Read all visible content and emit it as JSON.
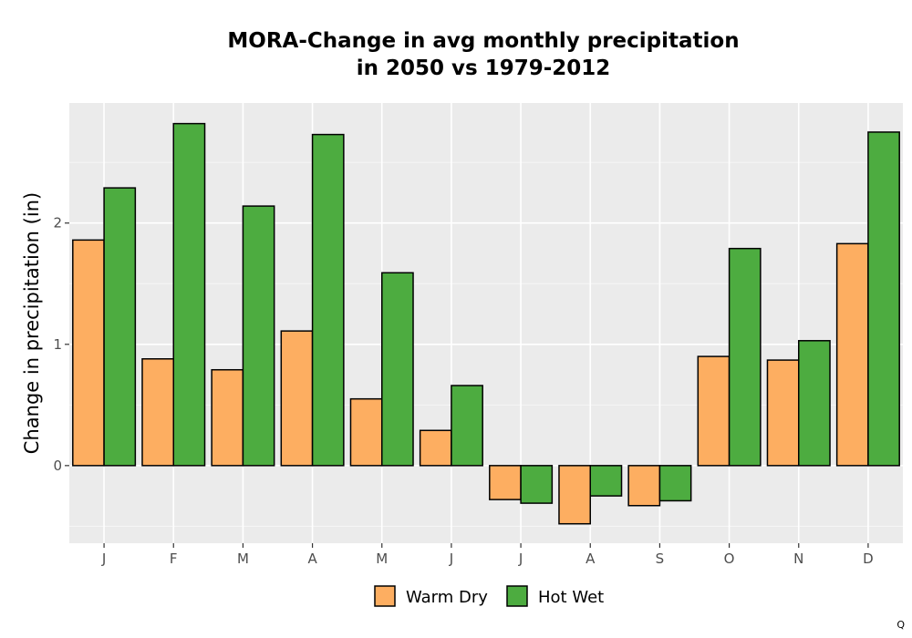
{
  "chart_data": {
    "type": "bar",
    "title_lines": [
      "MORA-Change in avg monthly precipitation",
      "in 2050 vs 1979-2012"
    ],
    "xlabel": "",
    "ylabel": "Change in precipitation (in)",
    "categories": [
      "J",
      "F",
      "M",
      "A",
      "M",
      "J",
      "J",
      "A",
      "S",
      "O",
      "N",
      "D"
    ],
    "series": [
      {
        "name": "Warm Dry",
        "color": "#FDAE61",
        "values": [
          1.86,
          0.88,
          0.79,
          1.11,
          0.55,
          0.29,
          -0.28,
          -0.48,
          -0.33,
          0.9,
          0.87,
          1.83
        ]
      },
      {
        "name": "Hot Wet",
        "color": "#4DAC40",
        "values": [
          2.29,
          2.82,
          2.14,
          2.73,
          1.59,
          0.66,
          -0.31,
          -0.25,
          -0.29,
          1.79,
          1.03,
          2.75
        ]
      }
    ],
    "ylim": [
      -0.64,
      2.99
    ],
    "yticks": [
      0,
      1,
      2
    ],
    "ytick_labels": [
      "0",
      "1",
      "2"
    ],
    "grid": true,
    "legend_position": "bottom",
    "panel_background": "#EBEBEB",
    "bar_outline": "#000000"
  },
  "footer_mark": "Q"
}
